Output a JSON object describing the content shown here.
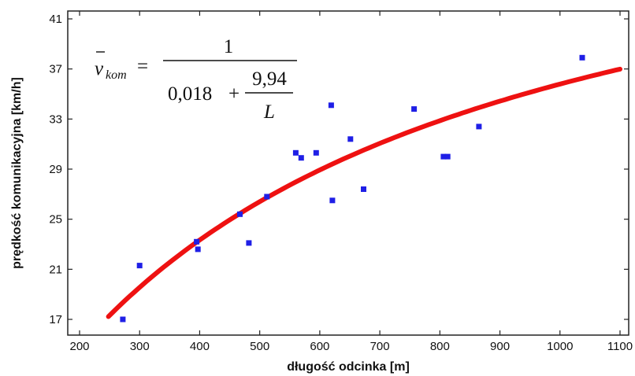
{
  "chart_data": {
    "type": "scatter",
    "title": "",
    "xlabel": "długość odcinka [m]",
    "ylabel": "prędkość komunikacyjna [km/h]",
    "xlim": [
      200,
      1100
    ],
    "ylim": [
      17,
      41
    ],
    "xticks": [
      200,
      300,
      400,
      500,
      600,
      700,
      800,
      900,
      1000,
      1100
    ],
    "yticks": [
      17,
      21,
      25,
      29,
      33,
      37,
      41
    ],
    "grid": false,
    "formula": {
      "lhs_symbol": "v",
      "lhs_subscript": "kom",
      "equals": "=",
      "numerator": "1",
      "denominator_constant": "0,018",
      "plus": "+",
      "inner_numerator": "9,94",
      "inner_denominator": "L"
    },
    "series": [
      {
        "kind": "points",
        "color": "#1f1fe6",
        "x": [
          272,
          300,
          395,
          397,
          467,
          482,
          512,
          560,
          569,
          594,
          619,
          621,
          651,
          673,
          757,
          806,
          813,
          865,
          1037
        ],
        "y": [
          17.0,
          21.3,
          23.2,
          22.6,
          25.4,
          23.1,
          26.8,
          30.3,
          29.9,
          30.3,
          34.1,
          26.5,
          31.4,
          27.4,
          33.8,
          30.0,
          30.0,
          32.4,
          37.9
        ]
      },
      {
        "kind": "fit-curve",
        "color": "#ee1111",
        "a": 0.018,
        "b": 9.94,
        "x_start": 248,
        "x_end": 1100,
        "y": [
          17.0,
          36.6
        ]
      }
    ]
  }
}
